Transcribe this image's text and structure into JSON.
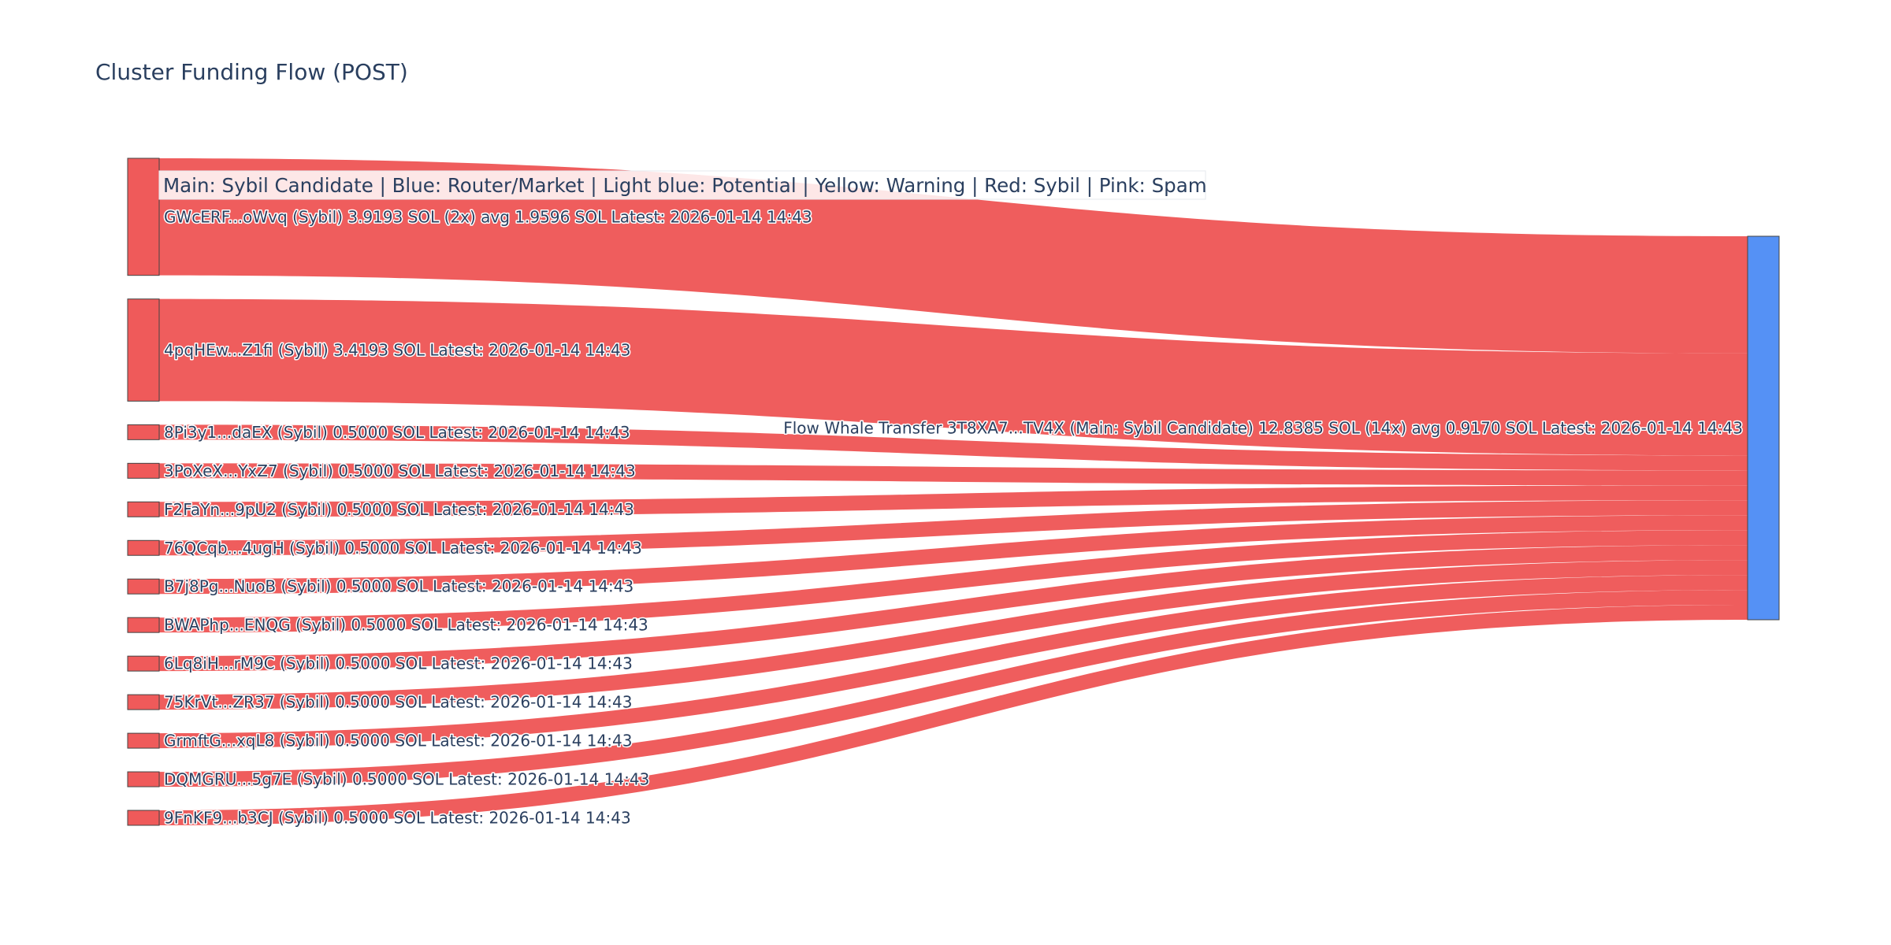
{
  "chart_data": {
    "type": "sankey",
    "title": "Cluster Funding Flow (POST)",
    "legend_text": "Main: Sybil Candidate  |  Blue: Router/Market | Light blue: Potential | Yellow: Warning | Red: Sybil | Pink: Spam",
    "target": {
      "label": "Flow Whale Transfer 3T8XA7...TV4X (Main: Sybil Candidate) 12.8385 SOL (14x) avg 0.9170 SOL Latest: 2026-01-14 14:43",
      "value": 12.8385,
      "color": "#5591f5"
    },
    "sources": [
      {
        "label": "GWcERF...oWvq (Sybil) 3.9193 SOL (2x) avg 1.9596 SOL Latest: 2026-01-14 14:43",
        "value": 3.9193,
        "color": "#ef5a5a"
      },
      {
        "label": "4pqHEw...Z1fi (Sybil) 3.4193 SOL Latest: 2026-01-14 14:43",
        "value": 3.4193,
        "color": "#ef5a5a"
      },
      {
        "label": "8Pi3y1...daEX (Sybil) 0.5000 SOL Latest: 2026-01-14 14:43",
        "value": 0.5,
        "color": "#ef5a5a"
      },
      {
        "label": "3PoXeX...YxZ7 (Sybil) 0.5000 SOL Latest: 2026-01-14 14:43",
        "value": 0.5,
        "color": "#ef5a5a"
      },
      {
        "label": "F2FaYn...9pU2 (Sybil) 0.5000 SOL Latest: 2026-01-14 14:43",
        "value": 0.5,
        "color": "#ef5a5a"
      },
      {
        "label": "76QCqb...4ugH (Sybil) 0.5000 SOL Latest: 2026-01-14 14:43",
        "value": 0.5,
        "color": "#ef5a5a"
      },
      {
        "label": "B7j8Pg...NuoB (Sybil) 0.5000 SOL Latest: 2026-01-14 14:43",
        "value": 0.5,
        "color": "#ef5a5a"
      },
      {
        "label": "BWAPhp...ENQG (Sybil) 0.5000 SOL Latest: 2026-01-14 14:43",
        "value": 0.5,
        "color": "#ef5a5a"
      },
      {
        "label": "6Lq8iH...rM9C (Sybil) 0.5000 SOL Latest: 2026-01-14 14:43",
        "value": 0.5,
        "color": "#ef5a5a"
      },
      {
        "label": "75KrVt...ZR37 (Sybil) 0.5000 SOL Latest: 2026-01-14 14:43",
        "value": 0.5,
        "color": "#ef5a5a"
      },
      {
        "label": "GrmftG...xqL8 (Sybil) 0.5000 SOL Latest: 2026-01-14 14:43",
        "value": 0.5,
        "color": "#ef5a5a"
      },
      {
        "label": "DQMGRU...5g7E (Sybil) 0.5000 SOL Latest: 2026-01-14 14:43",
        "value": 0.5,
        "color": "#ef5a5a"
      },
      {
        "label": "9FnKF9...b3CJ (Sybil) 0.5000 SOL Latest: 2026-01-14 14:43",
        "value": 0.5,
        "color": "#ef5a5a"
      }
    ]
  }
}
